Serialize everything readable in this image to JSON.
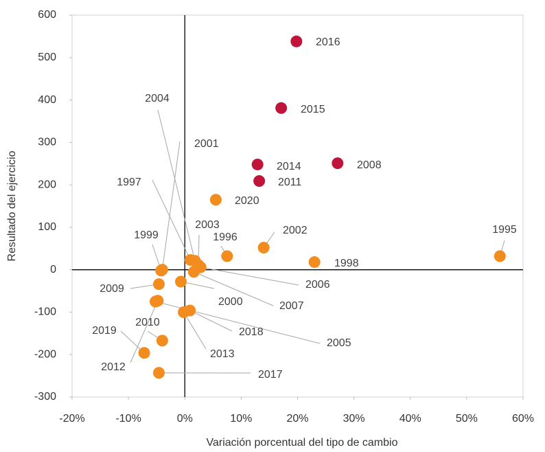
{
  "chart_data": {
    "type": "scatter",
    "x_label": "Variación porcentual del tipo de cambio",
    "y_label": "Resultado del ejercicio",
    "labels": [
      "2016",
      "2015",
      "2014",
      "2011",
      "2008",
      "2020",
      "1995",
      "2002",
      "1998",
      "1996",
      "1997",
      "2004",
      "2003",
      "2006",
      "2007",
      "2000",
      "1999",
      "2001",
      "2009",
      "2010",
      "2019",
      "2012",
      "2017",
      "2005",
      "2018",
      "2013"
    ],
    "x": [
      19.8,
      17.1,
      12.9,
      13.2,
      27.1,
      5.5,
      55.9,
      14.0,
      23.0,
      7.5,
      1.0,
      1.8,
      2.4,
      2.8,
      1.6,
      -0.7,
      -4.2,
      -4.0,
      -4.6,
      -4.0,
      -7.2,
      -4.8,
      -4.6,
      -5.2,
      0.9,
      -0.2
    ],
    "values": [
      538,
      381,
      248,
      209,
      251,
      165,
      32,
      52,
      18,
      32,
      23,
      21,
      11,
      6,
      -5,
      -28,
      -2,
      0,
      -34,
      -167,
      -196,
      -73,
      -243,
      -75,
      -96,
      -100
    ],
    "colors": [
      "#c0143c",
      "#c0143c",
      "#c0143c",
      "#c0143c",
      "#c0143c",
      "#f28c1e",
      "#f28c1e",
      "#f28c1e",
      "#f28c1e",
      "#f28c1e",
      "#f28c1e",
      "#f28c1e",
      "#f28c1e",
      "#f28c1e",
      "#f28c1e",
      "#f28c1e",
      "#f28c1e",
      "#f28c1e",
      "#f28c1e",
      "#f28c1e",
      "#f28c1e",
      "#f28c1e",
      "#f28c1e",
      "#f28c1e",
      "#f28c1e",
      "#f28c1e"
    ],
    "xlim": [
      -20,
      60
    ],
    "xticks": [
      {
        "value": -20,
        "label": "-20%"
      },
      {
        "value": -10,
        "label": "-10%"
      },
      {
        "value": 0,
        "label": "0%"
      },
      {
        "value": 10,
        "label": "10%"
      },
      {
        "value": 20,
        "label": "20%"
      },
      {
        "value": 30,
        "label": "30%"
      },
      {
        "value": 40,
        "label": "40%"
      },
      {
        "value": 50,
        "label": "50%"
      },
      {
        "value": 60,
        "label": "60%"
      }
    ],
    "ylim": [
      -300,
      600
    ],
    "yticks": [
      -300,
      -200,
      -100,
      0,
      100,
      200,
      300,
      400,
      500,
      600
    ]
  }
}
